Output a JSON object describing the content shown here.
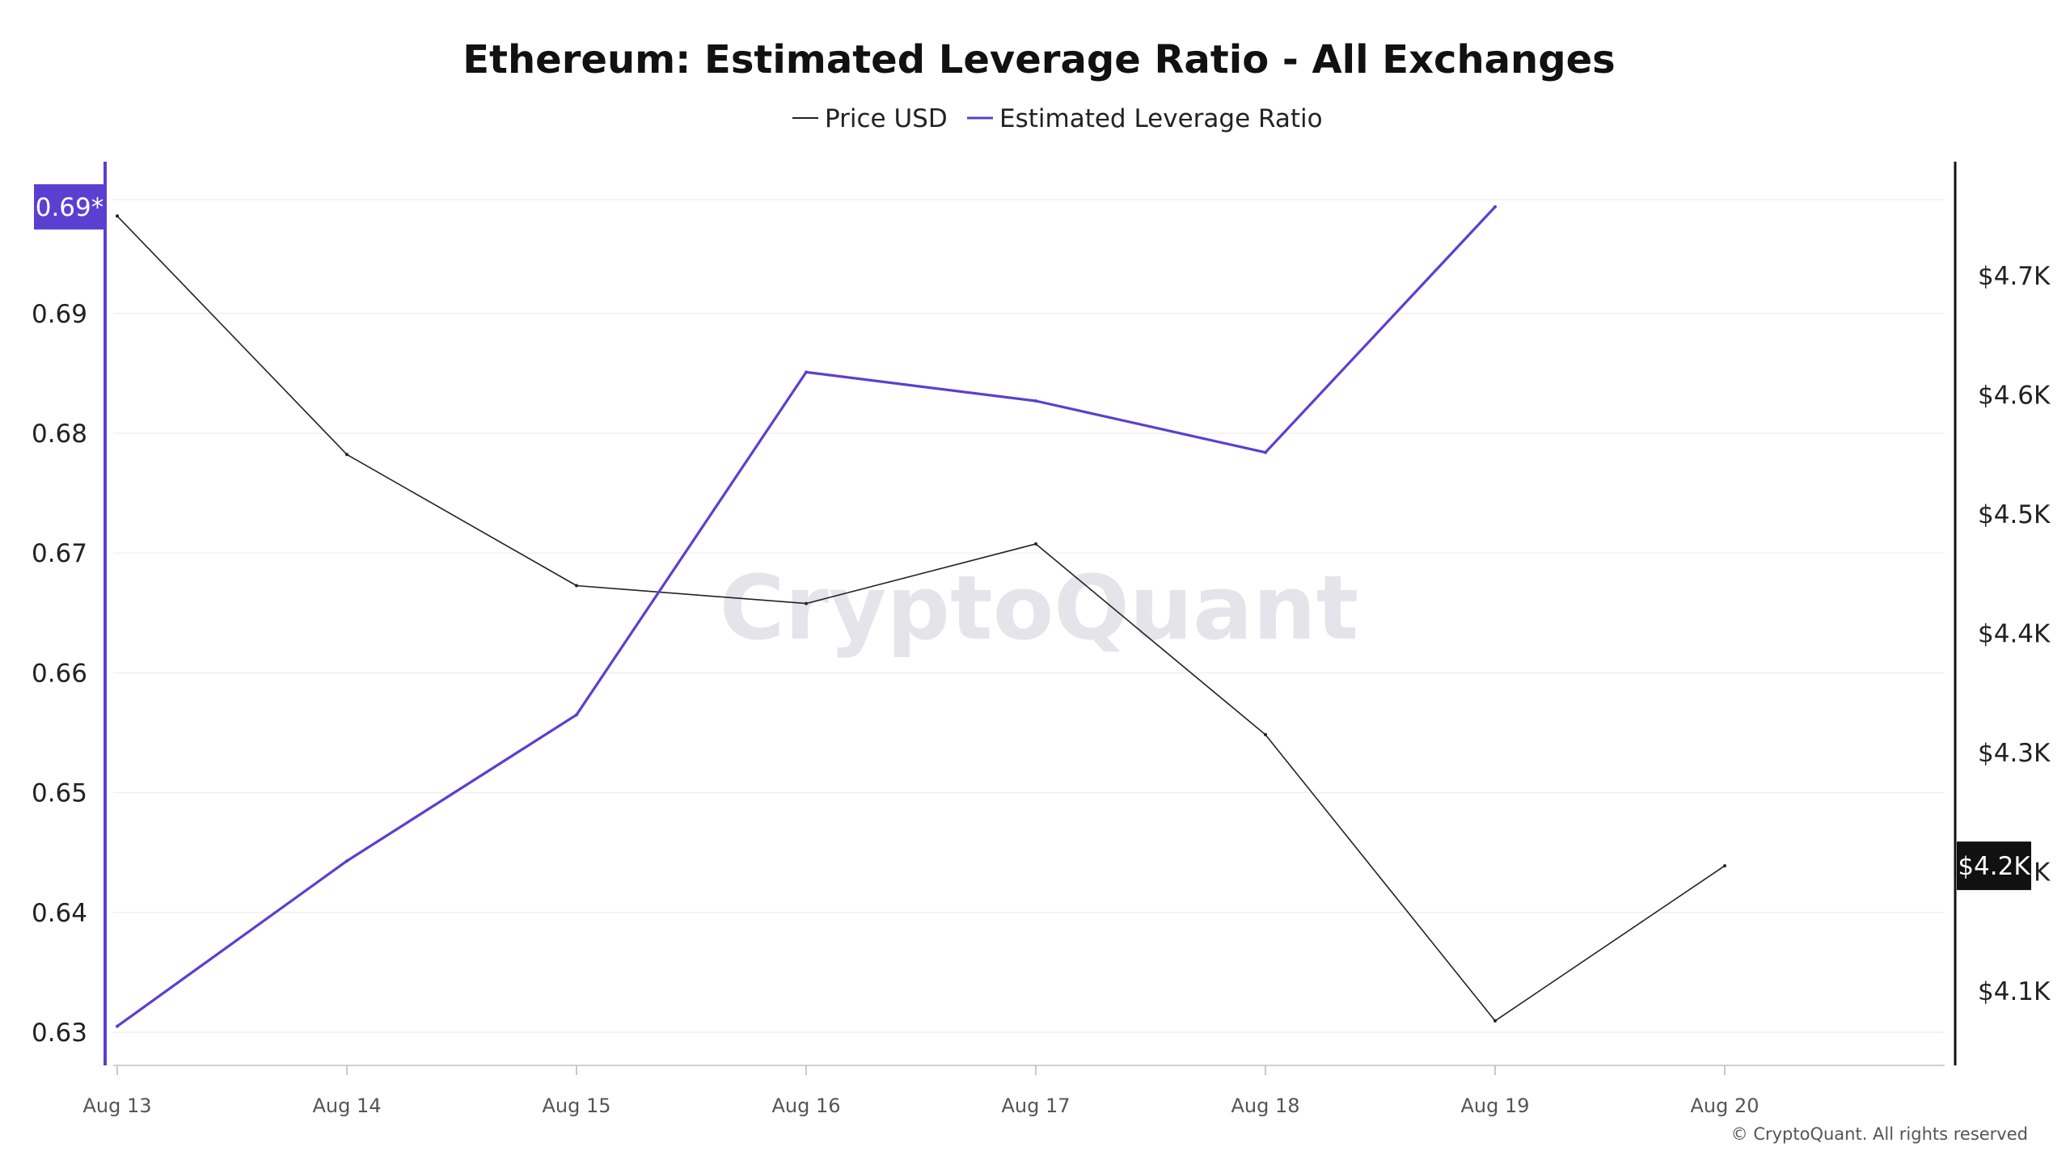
{
  "chart_data": {
    "type": "line",
    "title": "Ethereum: Estimated Leverage Ratio - All Exchanges",
    "x": [
      "Aug 13",
      "Aug 14",
      "Aug 15",
      "Aug 16",
      "Aug 17",
      "Aug 18",
      "Aug 19",
      "Aug 20"
    ],
    "series": [
      {
        "name": "Price USD",
        "axis": "right",
        "color": "#222222",
        "values": [
          4750,
          4550,
          4440,
          4425,
          4475,
          4315,
          4075,
          4205
        ]
      },
      {
        "name": "Estimated Leverage Ratio",
        "axis": "left",
        "color": "#5b3fd1",
        "values": [
          0.6305,
          0.6443,
          0.6565,
          0.6851,
          0.6827,
          0.6784,
          0.6989,
          null
        ]
      }
    ],
    "y_left": {
      "ticks": [
        0.63,
        0.64,
        0.65,
        0.66,
        0.67,
        0.68,
        0.69
      ],
      "tick_labels": [
        "0.63",
        "0.64",
        "0.65",
        "0.66",
        "0.67",
        "0.68",
        "0.69"
      ],
      "range": [
        0.63,
        0.6995
      ]
    },
    "y_right": {
      "ticks": [
        4100,
        4200,
        4300,
        4400,
        4500,
        4600,
        4700
      ],
      "tick_labels": [
        "$4.1K",
        "$4.2K",
        "$4.3K",
        "$4.4K",
        "$4.5K",
        "$4.6K",
        "$4.7K"
      ],
      "range": [
        4045,
        4780
      ]
    },
    "left_badge": {
      "label": "0.69*",
      "value": 0.6989,
      "color": "#5b3fd1"
    },
    "right_badge": {
      "label": "$4.2K",
      "value": 4205,
      "color": "#111111"
    },
    "legend": {
      "placement": "top-center"
    },
    "grid": true
  },
  "watermark": "CryptoQuant",
  "copyright": "© CryptoQuant. All rights reserved"
}
